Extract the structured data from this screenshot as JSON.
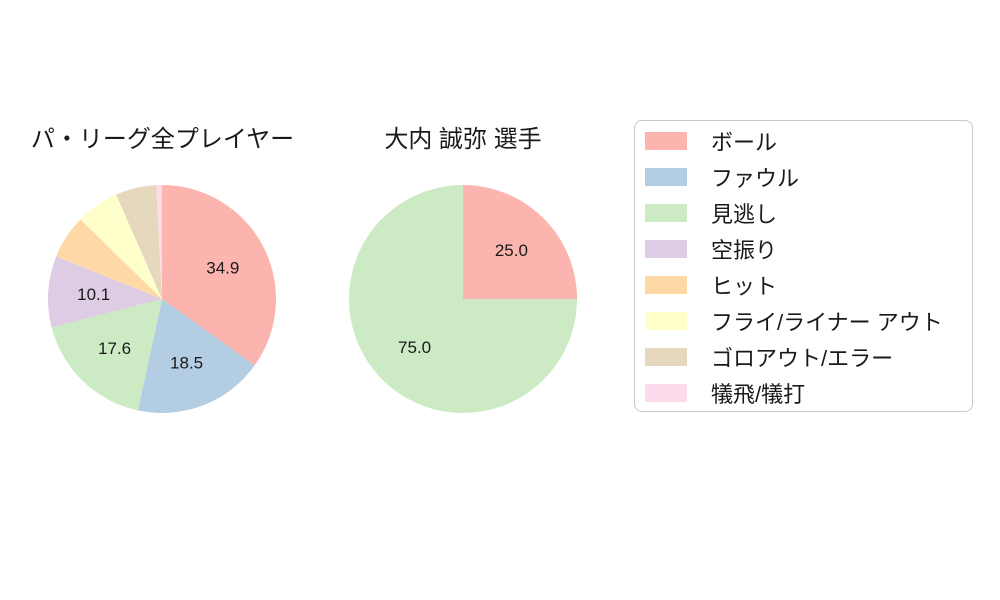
{
  "figure": {
    "background": "#ffffff",
    "text_color": "#1a1a1a"
  },
  "chart_data": [
    {
      "type": "pie",
      "title": "パ・リーグ全プレイヤー",
      "start_angle": "top",
      "direction": "clockwise",
      "label_threshold": 10,
      "pct_label_distance": 0.6,
      "slices": [
        {
          "label": "ボール",
          "value": 34.9,
          "color": "#FBB4AE",
          "pct_label": "34.9"
        },
        {
          "label": "ファウル",
          "value": 18.5,
          "color": "#B3CDE3",
          "pct_label": "18.5"
        },
        {
          "label": "見逃し",
          "value": 17.6,
          "color": "#CCEBC5",
          "pct_label": "17.6"
        },
        {
          "label": "空振り",
          "value": 10.1,
          "color": "#DECBE4",
          "pct_label": "10.1"
        },
        {
          "label": "ヒット",
          "value": 6.2,
          "color": "#FED9A6",
          "pct_label": ""
        },
        {
          "label": "フライ/ライナー アウト",
          "value": 6.1,
          "color": "#FFFFCC",
          "pct_label": ""
        },
        {
          "label": "ゴロアウト/エラー",
          "value": 5.8,
          "color": "#E5D8BD",
          "pct_label": ""
        },
        {
          "label": "犠飛/犠打",
          "value": 0.8,
          "color": "#FDDAEC",
          "pct_label": ""
        }
      ]
    },
    {
      "type": "pie",
      "title": "大内 誠弥 選手",
      "start_angle": "top",
      "direction": "clockwise",
      "label_threshold": 10,
      "pct_label_distance": 0.6,
      "slices": [
        {
          "label": "ボール",
          "value": 25.0,
          "color": "#FBB4AE",
          "pct_label": "25.0"
        },
        {
          "label": "見逃し",
          "value": 75.0,
          "color": "#CCEBC5",
          "pct_label": "75.0"
        }
      ]
    }
  ],
  "legend": {
    "position": "right",
    "border_color": "#c9c9c9",
    "items": [
      {
        "label": "ボール",
        "color": "#FBB4AE"
      },
      {
        "label": "ファウル",
        "color": "#B3CDE3"
      },
      {
        "label": "見逃し",
        "color": "#CCEBC5"
      },
      {
        "label": "空振り",
        "color": "#DECBE4"
      },
      {
        "label": "ヒット",
        "color": "#FED9A6"
      },
      {
        "label": "フライ/ライナー アウト",
        "color": "#FFFFCC"
      },
      {
        "label": "ゴロアウト/エラー",
        "color": "#E5D8BD"
      },
      {
        "label": "犠飛/犠打",
        "color": "#FDDAEC"
      }
    ]
  }
}
